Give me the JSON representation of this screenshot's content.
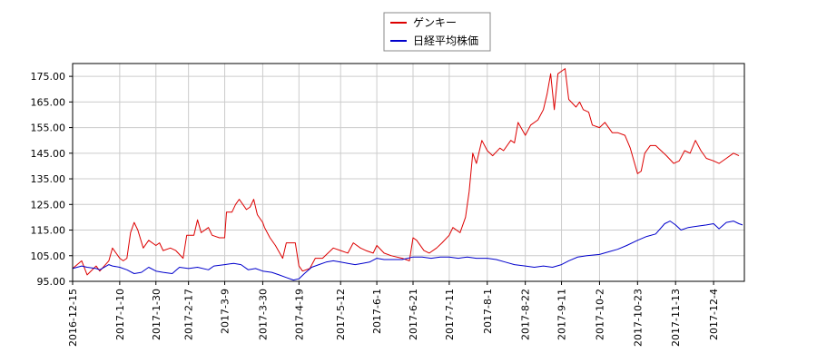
{
  "chart_data": {
    "type": "line",
    "title": "",
    "xlabel": "",
    "ylabel": "",
    "ylim": [
      95,
      180
    ],
    "xlim": [
      "2016-12-15",
      "2017-12-21"
    ],
    "grid": true,
    "legend_position": "top-center",
    "y_ticks": [
      "95.00",
      "105.00",
      "115.00",
      "125.00",
      "135.00",
      "145.00",
      "155.00",
      "165.00",
      "175.00"
    ],
    "x_ticks": [
      "2016-12-15",
      "2017-1-10",
      "2017-1-30",
      "2017-2-17",
      "2017-3-9",
      "2017-3-30",
      "2017-4-19",
      "2017-5-12",
      "2017-6-1",
      "2017-6-21",
      "2017-7-11",
      "2017-8-1",
      "2017-8-22",
      "2017-9-11",
      "2017-10-2",
      "2017-10-23",
      "2017-11-13",
      "2017-12-4"
    ],
    "series": [
      {
        "name": "ゲンキー",
        "color": "#dd0000",
        "points": [
          [
            "2016-12-15",
            100
          ],
          [
            "2016-12-20",
            103
          ],
          [
            "2016-12-23",
            97.5
          ],
          [
            "2016-12-28",
            101
          ],
          [
            "2016-12-30",
            99
          ],
          [
            "2017-1-4",
            103
          ],
          [
            "2017-1-6",
            108
          ],
          [
            "2017-1-10",
            104
          ],
          [
            "2017-1-12",
            103
          ],
          [
            "2017-1-14",
            104
          ],
          [
            "2017-1-16",
            114
          ],
          [
            "2017-1-18",
            118
          ],
          [
            "2017-1-20",
            115
          ],
          [
            "2017-1-23",
            108
          ],
          [
            "2017-1-26",
            111
          ],
          [
            "2017-1-30",
            109
          ],
          [
            "2017-2-1",
            110
          ],
          [
            "2017-2-3",
            107
          ],
          [
            "2017-2-7",
            108
          ],
          [
            "2017-2-10",
            107
          ],
          [
            "2017-2-14",
            104
          ],
          [
            "2017-2-16",
            113
          ],
          [
            "2017-2-20",
            113
          ],
          [
            "2017-2-22",
            119
          ],
          [
            "2017-2-24",
            114
          ],
          [
            "2017-2-28",
            116
          ],
          [
            "2017-3-2",
            113
          ],
          [
            "2017-3-6",
            112
          ],
          [
            "2017-3-9",
            112
          ],
          [
            "2017-3-10",
            122
          ],
          [
            "2017-3-13",
            122
          ],
          [
            "2017-3-15",
            125
          ],
          [
            "2017-3-17",
            127
          ],
          [
            "2017-3-21",
            123
          ],
          [
            "2017-3-23",
            124
          ],
          [
            "2017-3-25",
            127
          ],
          [
            "2017-3-27",
            121
          ],
          [
            "2017-3-30",
            118
          ],
          [
            "2017-3-31",
            116
          ],
          [
            "2017-4-3",
            112
          ],
          [
            "2017-4-6",
            109
          ],
          [
            "2017-4-10",
            104
          ],
          [
            "2017-4-12",
            110
          ],
          [
            "2017-4-14",
            110
          ],
          [
            "2017-4-17",
            110
          ],
          [
            "2017-4-19",
            101
          ],
          [
            "2017-4-21",
            99
          ],
          [
            "2017-4-25",
            100
          ],
          [
            "2017-4-28",
            104
          ],
          [
            "2017-5-2",
            104
          ],
          [
            "2017-5-8",
            108
          ],
          [
            "2017-5-12",
            107
          ],
          [
            "2017-5-16",
            106
          ],
          [
            "2017-5-19",
            110
          ],
          [
            "2017-5-23",
            108
          ],
          [
            "2017-5-26",
            107
          ],
          [
            "2017-5-30",
            106
          ],
          [
            "2017-6-1",
            109
          ],
          [
            "2017-6-5",
            106
          ],
          [
            "2017-6-9",
            105
          ],
          [
            "2017-6-15",
            104
          ],
          [
            "2017-6-19",
            103
          ],
          [
            "2017-6-21",
            112
          ],
          [
            "2017-6-23",
            111
          ],
          [
            "2017-6-27",
            107
          ],
          [
            "2017-6-30",
            106
          ],
          [
            "2017-7-4",
            108
          ],
          [
            "2017-7-7",
            110
          ],
          [
            "2017-7-11",
            113
          ],
          [
            "2017-7-13",
            116
          ],
          [
            "2017-7-17",
            114
          ],
          [
            "2017-7-20",
            120
          ],
          [
            "2017-7-22",
            130
          ],
          [
            "2017-7-24",
            145
          ],
          [
            "2017-7-26",
            141
          ],
          [
            "2017-7-29",
            150
          ],
          [
            "2017-8-1",
            146
          ],
          [
            "2017-8-4",
            144
          ],
          [
            "2017-8-8",
            147
          ],
          [
            "2017-8-10",
            146
          ],
          [
            "2017-8-14",
            150
          ],
          [
            "2017-8-16",
            149
          ],
          [
            "2017-8-18",
            157
          ],
          [
            "2017-8-22",
            152
          ],
          [
            "2017-8-25",
            156
          ],
          [
            "2017-8-29",
            158
          ],
          [
            "2017-9-1",
            162
          ],
          [
            "2017-9-3",
            168
          ],
          [
            "2017-9-5",
            176
          ],
          [
            "2017-9-7",
            162
          ],
          [
            "2017-9-9",
            176
          ],
          [
            "2017-9-11",
            177
          ],
          [
            "2017-9-13",
            178
          ],
          [
            "2017-9-15",
            166
          ],
          [
            "2017-9-19",
            163
          ],
          [
            "2017-9-21",
            165
          ],
          [
            "2017-9-23",
            162
          ],
          [
            "2017-9-26",
            161
          ],
          [
            "2017-9-28",
            156
          ],
          [
            "2017-10-2",
            155
          ],
          [
            "2017-10-5",
            157
          ],
          [
            "2017-10-9",
            153
          ],
          [
            "2017-10-12",
            153
          ],
          [
            "2017-10-16",
            152
          ],
          [
            "2017-10-19",
            147
          ],
          [
            "2017-10-23",
            137
          ],
          [
            "2017-10-25",
            138
          ],
          [
            "2017-10-27",
            145
          ],
          [
            "2017-10-30",
            148
          ],
          [
            "2017-11-2",
            148
          ],
          [
            "2017-11-5",
            146
          ],
          [
            "2017-11-8",
            144
          ],
          [
            "2017-11-12",
            141
          ],
          [
            "2017-11-15",
            142
          ],
          [
            "2017-11-18",
            146
          ],
          [
            "2017-11-21",
            145
          ],
          [
            "2017-11-24",
            150
          ],
          [
            "2017-11-27",
            146
          ],
          [
            "2017-11-30",
            143
          ],
          [
            "2017-12-4",
            142
          ],
          [
            "2017-12-7",
            141
          ],
          [
            "2017-12-11",
            143
          ],
          [
            "2017-12-15",
            145
          ],
          [
            "2017-12-18",
            144
          ]
        ]
      },
      {
        "name": "日経平均株価",
        "color": "#0000cc",
        "points": [
          [
            "2016-12-15",
            100
          ],
          [
            "2016-12-20",
            101
          ],
          [
            "2016-12-23",
            100.5
          ],
          [
            "2016-12-28",
            100
          ],
          [
            "2016-12-30",
            99.5
          ],
          [
            "2017-1-4",
            101.5
          ],
          [
            "2017-1-6",
            101
          ],
          [
            "2017-1-10",
            100.5
          ],
          [
            "2017-1-14",
            99.5
          ],
          [
            "2017-1-18",
            98
          ],
          [
            "2017-1-22",
            98.5
          ],
          [
            "2017-1-26",
            100.5
          ],
          [
            "2017-1-30",
            99
          ],
          [
            "2017-2-3",
            98.5
          ],
          [
            "2017-2-8",
            98
          ],
          [
            "2017-2-12",
            100.5
          ],
          [
            "2017-2-17",
            100
          ],
          [
            "2017-2-22",
            100.5
          ],
          [
            "2017-2-28",
            99.5
          ],
          [
            "2017-3-3",
            101
          ],
          [
            "2017-3-9",
            101.5
          ],
          [
            "2017-3-14",
            102
          ],
          [
            "2017-3-18",
            101.5
          ],
          [
            "2017-3-22",
            99.5
          ],
          [
            "2017-3-26",
            100
          ],
          [
            "2017-3-30",
            99
          ],
          [
            "2017-4-4",
            98.5
          ],
          [
            "2017-4-8",
            97.5
          ],
          [
            "2017-4-12",
            96.5
          ],
          [
            "2017-4-16",
            95.5
          ],
          [
            "2017-4-19",
            96
          ],
          [
            "2017-4-22",
            98
          ],
          [
            "2017-4-26",
            100.5
          ],
          [
            "2017-4-30",
            101.5
          ],
          [
            "2017-5-4",
            102.5
          ],
          [
            "2017-5-8",
            103
          ],
          [
            "2017-5-12",
            102.5
          ],
          [
            "2017-5-16",
            102
          ],
          [
            "2017-5-20",
            101.5
          ],
          [
            "2017-5-24",
            102
          ],
          [
            "2017-5-28",
            102.5
          ],
          [
            "2017-6-1",
            104
          ],
          [
            "2017-6-5",
            103.5
          ],
          [
            "2017-6-10",
            103.5
          ],
          [
            "2017-6-15",
            103.5
          ],
          [
            "2017-6-21",
            104.5
          ],
          [
            "2017-6-26",
            104.5
          ],
          [
            "2017-7-1",
            104
          ],
          [
            "2017-7-6",
            104.5
          ],
          [
            "2017-7-11",
            104.5
          ],
          [
            "2017-7-16",
            104
          ],
          [
            "2017-7-21",
            104.5
          ],
          [
            "2017-7-26",
            104
          ],
          [
            "2017-8-1",
            104
          ],
          [
            "2017-8-6",
            103.5
          ],
          [
            "2017-8-11",
            102.5
          ],
          [
            "2017-8-16",
            101.5
          ],
          [
            "2017-8-22",
            101
          ],
          [
            "2017-8-27",
            100.5
          ],
          [
            "2017-9-1",
            101
          ],
          [
            "2017-9-6",
            100.5
          ],
          [
            "2017-9-11",
            101.5
          ],
          [
            "2017-9-15",
            103
          ],
          [
            "2017-9-20",
            104.5
          ],
          [
            "2017-9-25",
            105
          ],
          [
            "2017-10-2",
            105.5
          ],
          [
            "2017-10-7",
            106.5
          ],
          [
            "2017-10-12",
            107.5
          ],
          [
            "2017-10-17",
            109
          ],
          [
            "2017-10-23",
            111
          ],
          [
            "2017-10-28",
            112.5
          ],
          [
            "2017-11-2",
            113.5
          ],
          [
            "2017-11-7",
            117.5
          ],
          [
            "2017-11-10",
            118.5
          ],
          [
            "2017-11-13",
            117
          ],
          [
            "2017-11-16",
            115
          ],
          [
            "2017-11-20",
            116
          ],
          [
            "2017-11-25",
            116.5
          ],
          [
            "2017-11-30",
            117
          ],
          [
            "2017-12-4",
            117.5
          ],
          [
            "2017-12-7",
            115.5
          ],
          [
            "2017-12-11",
            118
          ],
          [
            "2017-12-15",
            118.5
          ],
          [
            "2017-12-18",
            117.5
          ],
          [
            "2017-12-20",
            117
          ]
        ]
      }
    ]
  },
  "legend": {
    "items": [
      {
        "label": "ゲンキー",
        "color": "#dd0000"
      },
      {
        "label": "日経平均株価",
        "color": "#0000cc"
      }
    ]
  }
}
